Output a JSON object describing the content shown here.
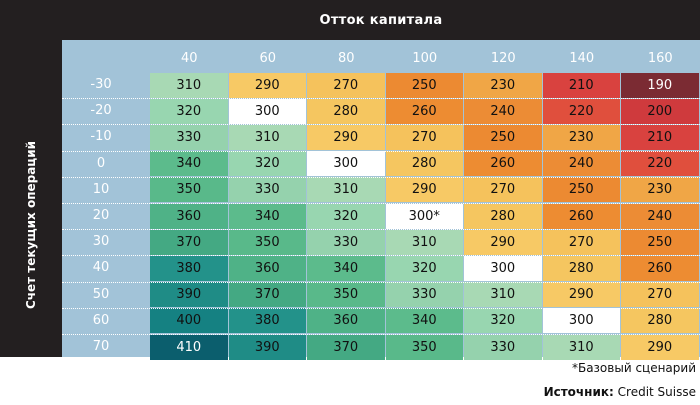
{
  "chart_data": {
    "type": "heatmap",
    "title": "Отток капитала",
    "ylabel": "Счет текущих операций",
    "x": [
      "40",
      "60",
      "80",
      "100",
      "120",
      "140",
      "160"
    ],
    "y": [
      "-30",
      "-20",
      "-10",
      "0",
      "10",
      "20",
      "30",
      "40",
      "50",
      "60",
      "70"
    ],
    "values": [
      [
        "310",
        "290",
        "270",
        "250",
        "230",
        "210",
        "190"
      ],
      [
        "320",
        "300",
        "280",
        "260",
        "240",
        "220",
        "200"
      ],
      [
        "330",
        "310",
        "290",
        "270",
        "250",
        "230",
        "210"
      ],
      [
        "340",
        "320",
        "300",
        "280",
        "260",
        "240",
        "220"
      ],
      [
        "350",
        "330",
        "310",
        "290",
        "270",
        "250",
        "230"
      ],
      [
        "360",
        "340",
        "320",
        "300*",
        "280",
        "260",
        "240"
      ],
      [
        "370",
        "350",
        "330",
        "310",
        "290",
        "270",
        "250"
      ],
      [
        "380",
        "360",
        "340",
        "320",
        "300",
        "280",
        "260"
      ],
      [
        "390",
        "370",
        "350",
        "330",
        "310",
        "290",
        "270"
      ],
      [
        "400",
        "380",
        "360",
        "340",
        "320",
        "300",
        "280"
      ],
      [
        "410",
        "390",
        "370",
        "350",
        "330",
        "310",
        "290"
      ]
    ],
    "colors": {
      "190": "#7b2b33",
      "200": "#cf3a3d",
      "210": "#d9423f",
      "220": "#e04f3d",
      "230": "#f0a646",
      "240": "#ec8c35",
      "250": "#ec8a32",
      "260": "#ed8c32",
      "270": "#f5c25c",
      "280": "#f5c660",
      "290": "#f7c965",
      "300": "#ffffff",
      "310": "#a8d9b4",
      "320": "#98d6b0",
      "330": "#95d2ad",
      "340": "#5cbb8c",
      "350": "#59b98a",
      "360": "#4fb287",
      "370": "#44a983",
      "380": "#23928a",
      "390": "#1f8c86",
      "400": "#158182",
      "410": "#0b5e6d"
    },
    "dark_text_values": [
      "190",
      "410"
    ],
    "note": "*Базовый сценарий"
  },
  "source": {
    "label": "Источник:",
    "value": "Credit Suisse"
  }
}
